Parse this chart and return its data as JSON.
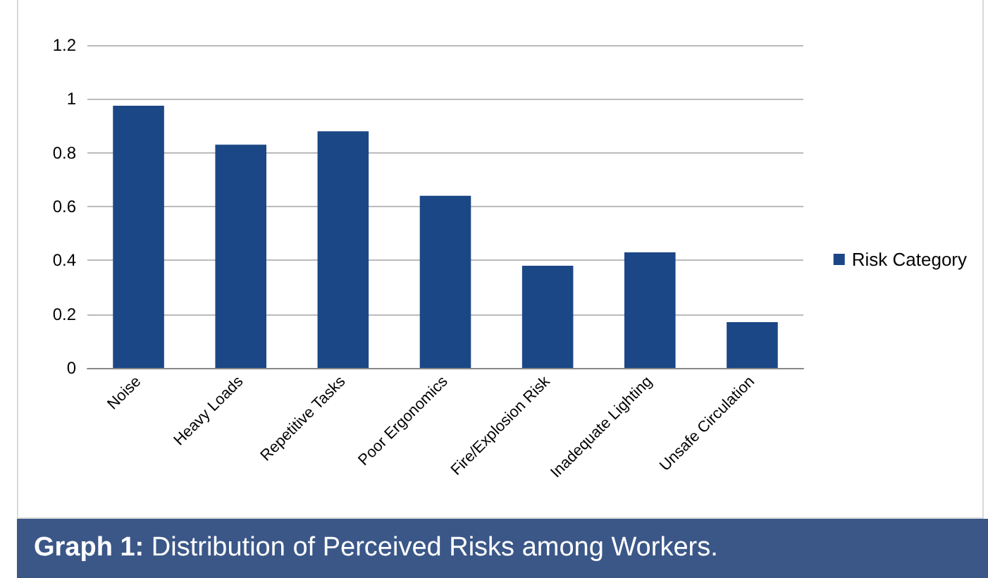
{
  "chart_data": {
    "type": "bar",
    "title": "Graph 1: Distribution of Perceived Risks among Workers.",
    "categories": [
      "Noise",
      "Heavy Loads",
      "Repetitive Tasks",
      "Poor Ergonomics",
      "Fire/Explosion Risk",
      "Inadequate Lighting",
      "Unsafe Circulation"
    ],
    "series": [
      {
        "name": "Risk Category",
        "color": "#1b4786",
        "values": [
          0.975,
          0.83,
          0.88,
          0.64,
          0.38,
          0.43,
          0.17
        ]
      }
    ],
    "ylim": [
      0,
      1.2
    ],
    "yticks": [
      0,
      0.2,
      0.4,
      0.6,
      0.8,
      1,
      1.2
    ],
    "grid": "y",
    "legend": "right"
  }
}
